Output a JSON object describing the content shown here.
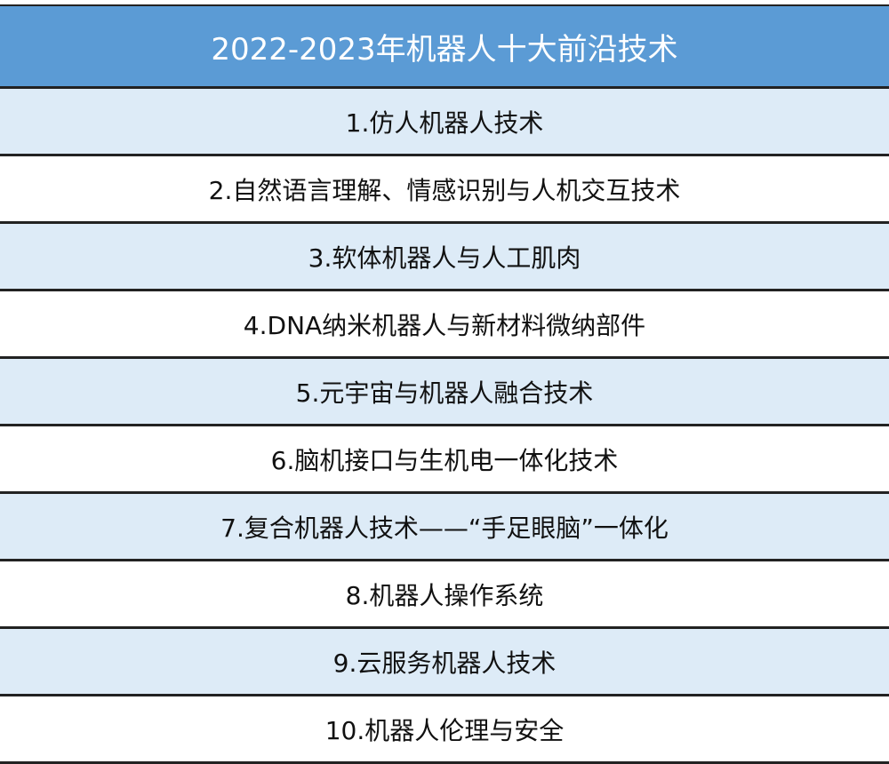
{
  "title": "2022-2023年机器人十大前沿技术",
  "colors": {
    "header_bg": "#5b9bd5",
    "alt_row_bg": "#ddebf7",
    "border": "#222222"
  },
  "items": [
    "1.仿人机器人技术",
    "2.自然语言理解、情感识别与人机交互技术",
    "3.软体机器人与人工肌肉",
    "4.DNA纳米机器人与新材料微纳部件",
    "5.元宇宙与机器人融合技术",
    "6.脑机接口与生机电一体化技术",
    "7.复合机器人技术——“手足眼脑”一体化",
    "8.机器人操作系统",
    "9.云服务机器人技术",
    "10.机器人伦理与安全"
  ]
}
